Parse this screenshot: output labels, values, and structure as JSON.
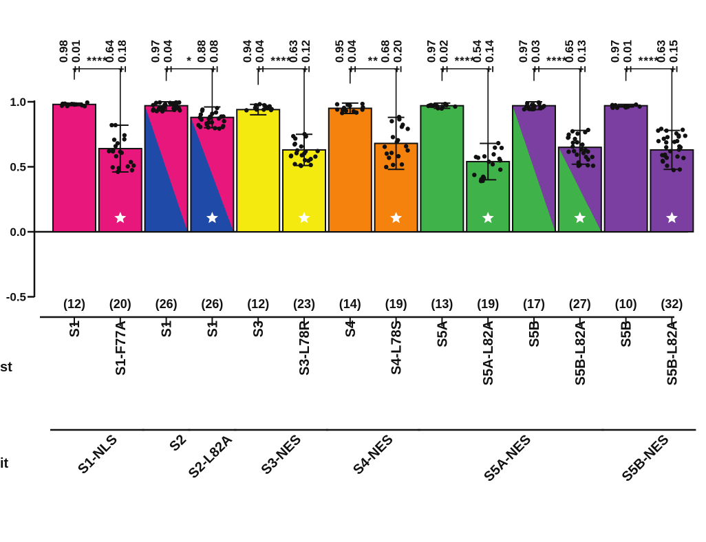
{
  "chart_data": {
    "type": "bar",
    "ylim": [
      -0.5,
      1.0
    ],
    "yticks": [
      "1.0",
      "0.5",
      "0.0",
      "-0.5"
    ],
    "row_labels": [
      "st",
      "it"
    ],
    "bars": [
      {
        "top": "S1",
        "bottom": "S1-F77A",
        "n": "(12)",
        "value": 0.98,
        "err": 0.01,
        "mean": "0.98",
        "sd": "± 0.01",
        "color": "#e8177c",
        "split": null,
        "star": false
      },
      {
        "top": "",
        "bottom": "S1-F77A",
        "n": "(20)",
        "value": 0.64,
        "err": 0.18,
        "mean": "0.64",
        "sd": "± 0.18",
        "color": "#e8177c",
        "split": null,
        "star": true
      },
      {
        "top": "S1",
        "bottom": "",
        "n": "(26)",
        "value": 0.97,
        "err": 0.04,
        "mean": "0.97",
        "sd": "± 0.04",
        "color": "#e8177c",
        "split": "#1f4aa8",
        "star": false
      },
      {
        "top": "S1",
        "bottom": "",
        "n": "(26)",
        "value": 0.88,
        "err": 0.08,
        "mean": "0.88",
        "sd": "± 0.08",
        "color": "#e8177c",
        "split": "#1f4aa8",
        "star": true
      },
      {
        "top": "S3",
        "bottom": "S3-L78R",
        "n": "(12)",
        "value": 0.94,
        "err": 0.04,
        "mean": "0.94",
        "sd": "± 0.04",
        "color": "#f4ea10",
        "split": null,
        "star": false
      },
      {
        "top": "",
        "bottom": "S3-L78R",
        "n": "(23)",
        "value": 0.63,
        "err": 0.12,
        "mean": "0.63",
        "sd": "± 0.12",
        "color": "#f4ea10",
        "split": null,
        "star": true
      },
      {
        "top": "S4",
        "bottom": "S4-L78S",
        "n": "(14)",
        "value": 0.95,
        "err": 0.04,
        "mean": "0.95",
        "sd": "± 0.04",
        "color": "#f5820d",
        "split": null,
        "star": false
      },
      {
        "top": "",
        "bottom": "S4-L78S",
        "n": "(19)",
        "value": 0.68,
        "err": 0.2,
        "mean": "0.68",
        "sd": "± 0.20",
        "color": "#f5820d",
        "split": null,
        "star": true
      },
      {
        "top": "S5A",
        "bottom": "S5A-L82A",
        "n": "(13)",
        "value": 0.97,
        "err": 0.02,
        "mean": "0.97",
        "sd": "± 0.02",
        "color": "#3fb24a",
        "split": null,
        "star": false
      },
      {
        "top": "",
        "bottom": "S5A-L82A",
        "n": "(19)",
        "value": 0.54,
        "err": 0.14,
        "mean": "0.54",
        "sd": "± 0.14",
        "color": "#3fb24a",
        "split": null,
        "star": true
      },
      {
        "top": "S5B",
        "bottom": "S5B-L82A",
        "n": "(17)",
        "value": 0.97,
        "err": 0.03,
        "mean": "0.97",
        "sd": "± 0.03",
        "color": "#7a3fa0",
        "split": "#3fb24a",
        "star": false
      },
      {
        "top": "",
        "bottom": "S5B-L82A",
        "n": "(27)",
        "value": 0.65,
        "err": 0.13,
        "mean": "0.65",
        "sd": "± 0.13",
        "color": "#7a3fa0",
        "split": "#3fb24a",
        "star": true
      },
      {
        "top": "S5B",
        "bottom": "S5B-L82A",
        "n": "(10)",
        "value": 0.97,
        "err": 0.01,
        "mean": "0.97",
        "sd": "± 0.01",
        "color": "#7a3fa0",
        "split": null,
        "star": false
      },
      {
        "top": "",
        "bottom": "S5B-L82A",
        "n": "(32)",
        "value": 0.63,
        "err": 0.15,
        "mean": "0.63",
        "sd": "± 0.15",
        "color": "#7a3fa0",
        "split": null,
        "star": true
      }
    ],
    "x_labels": [
      "S1",
      "S1-F77A",
      "S1",
      "S1",
      "S3",
      "S3-L78R",
      "S4",
      "S4-L78S",
      "S5A",
      "S5A-L82A",
      "S5B",
      "S5B-L82A",
      "S5B",
      "S5B-L82A"
    ],
    "significance": [
      {
        "pair": [
          0,
          1
        ],
        "label": "****"
      },
      {
        "pair": [
          2,
          3
        ],
        "label": "*"
      },
      {
        "pair": [
          4,
          5
        ],
        "label": "****"
      },
      {
        "pair": [
          6,
          7
        ],
        "label": "**"
      },
      {
        "pair": [
          8,
          9
        ],
        "label": "****"
      },
      {
        "pair": [
          10,
          11
        ],
        "label": "****"
      },
      {
        "pair": [
          12,
          13
        ],
        "label": "****"
      }
    ],
    "groups": [
      {
        "label": "S1-NLS",
        "span": [
          0,
          1
        ]
      },
      {
        "label": "S2",
        "span": [
          2,
          2
        ]
      },
      {
        "label": "S2-L82A",
        "span": [
          3,
          3
        ]
      },
      {
        "label": "S3-NES",
        "span": [
          4,
          5
        ]
      },
      {
        "label": "S4-NES",
        "span": [
          6,
          7
        ]
      },
      {
        "label": "S5A-NES",
        "span": [
          8,
          11
        ]
      },
      {
        "label": "S5B-NES",
        "span": [
          12,
          13
        ]
      }
    ]
  }
}
